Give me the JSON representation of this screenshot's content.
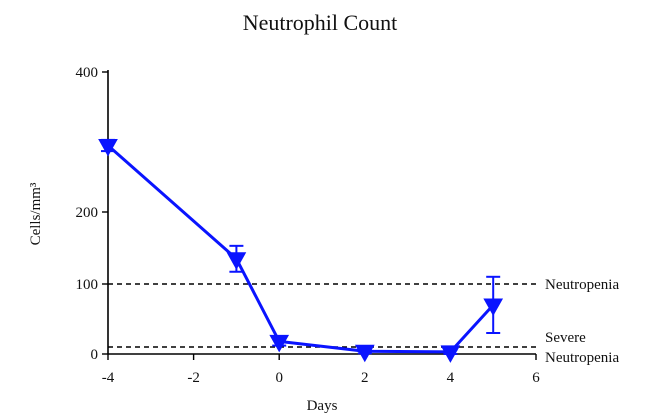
{
  "chart_data": {
    "type": "line",
    "title": "Neutrophil Count",
    "xlabel": "Days",
    "ylabel": "Cells/mm³",
    "xlim": [
      -4,
      6
    ],
    "ylim": [
      0,
      400
    ],
    "y_axis_note": "y-axis is non-linear: 0-100 region expanded, 100-400 compressed",
    "x_ticks": [
      -4,
      -2,
      0,
      2,
      4,
      6
    ],
    "x_tick_labels": [
      "-4",
      "-2",
      "0",
      "2",
      "4",
      "6"
    ],
    "y_ticks": [
      0,
      100,
      200,
      400
    ],
    "y_tick_labels": [
      "0",
      "100",
      "200",
      "400"
    ],
    "grid": false,
    "legend": "none",
    "series": [
      {
        "color": "#0a14ff",
        "marker": "down-triangle",
        "x": [
          -4,
          -1,
          0,
          2,
          4,
          5
        ],
        "y": [
          295,
          135,
          18,
          4,
          3,
          70
        ],
        "error": [
          8,
          18,
          6,
          3,
          3,
          40
        ]
      }
    ],
    "reference_lines": [
      {
        "y": 100,
        "label": "Neutropenia"
      },
      {
        "y": 10,
        "label": "Severe\nNeutropenia"
      }
    ]
  }
}
